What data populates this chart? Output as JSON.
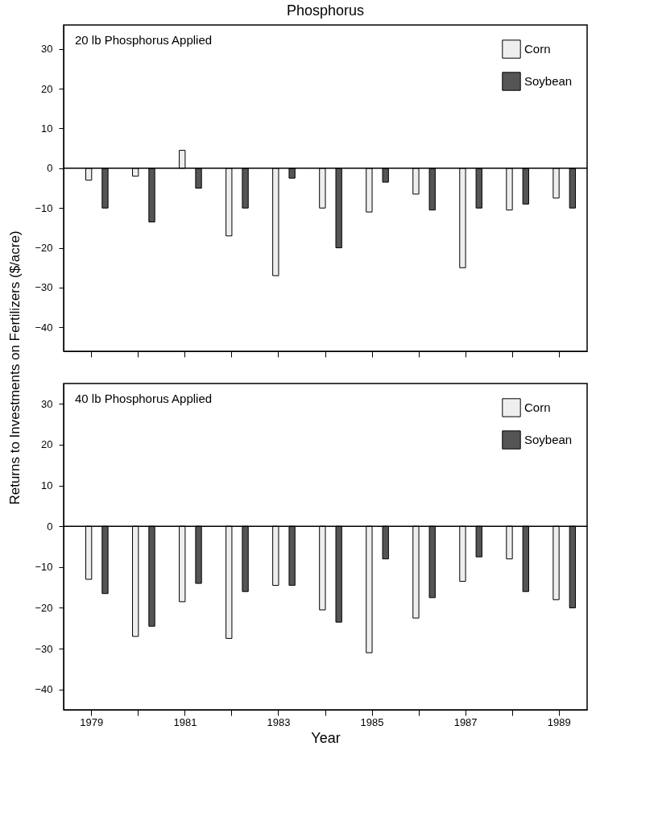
{
  "chart_data": [
    {
      "type": "bar",
      "title": "Phosphorus",
      "ylabel": "Returns to Investments on Fertilizers ($/acre)",
      "annotations": [
        "20 lb Phosphorus Applied"
      ],
      "categories": [
        "1979",
        null,
        "1981",
        null,
        "1983",
        null,
        "1985",
        null,
        "1987",
        null,
        "1989"
      ],
      "series": [
        {
          "name": "Corn",
          "color": "#eeeeee",
          "values": [
            -3,
            -2,
            4.5,
            -17,
            -27,
            -10,
            -11,
            -6.5,
            -25,
            -10.5,
            -7.5
          ]
        },
        {
          "name": "Soybean",
          "color": "#555555",
          "values": [
            -10,
            -13.5,
            -5,
            -10,
            -2.5,
            -20,
            -3.5,
            -10.5,
            -10,
            -9,
            -10
          ]
        }
      ],
      "ylim": [
        -46,
        36
      ],
      "yticks": [
        -40,
        -30,
        -20,
        -10,
        0,
        10,
        20,
        30
      ],
      "tick_labels": "y",
      "legend": "top right",
      "grid": false,
      "ref_lines": [
        {
          "axis": "y",
          "value": 0,
          "color": "#000000"
        }
      ]
    },
    {
      "type": "bar",
      "xlabel": "Year",
      "annotations": [
        "40 lb Phosphorus Applied"
      ],
      "categories": [
        "1979",
        null,
        "1981",
        null,
        "1983",
        null,
        "1985",
        null,
        "1987",
        null,
        "1989"
      ],
      "series": [
        {
          "name": "Corn",
          "color": "#eeeeee",
          "values": [
            -13,
            -27,
            -18.5,
            -27.5,
            -14.5,
            -20.5,
            -31,
            -22.5,
            -13.5,
            -8,
            -18
          ]
        },
        {
          "name": "Soybean",
          "color": "#555555",
          "values": [
            -16.5,
            -24.5,
            -14,
            -16,
            -14.5,
            -23.5,
            -8,
            -17.5,
            -7.5,
            -16,
            -20
          ]
        }
      ],
      "ylim": [
        -45,
        35
      ],
      "yticks": [
        -40,
        -30,
        -20,
        -10,
        0,
        10,
        20,
        30
      ],
      "legend": "top right",
      "grid": false,
      "ref_lines": [
        {
          "axis": "y",
          "value": 0,
          "color": "#000000"
        }
      ]
    }
  ]
}
